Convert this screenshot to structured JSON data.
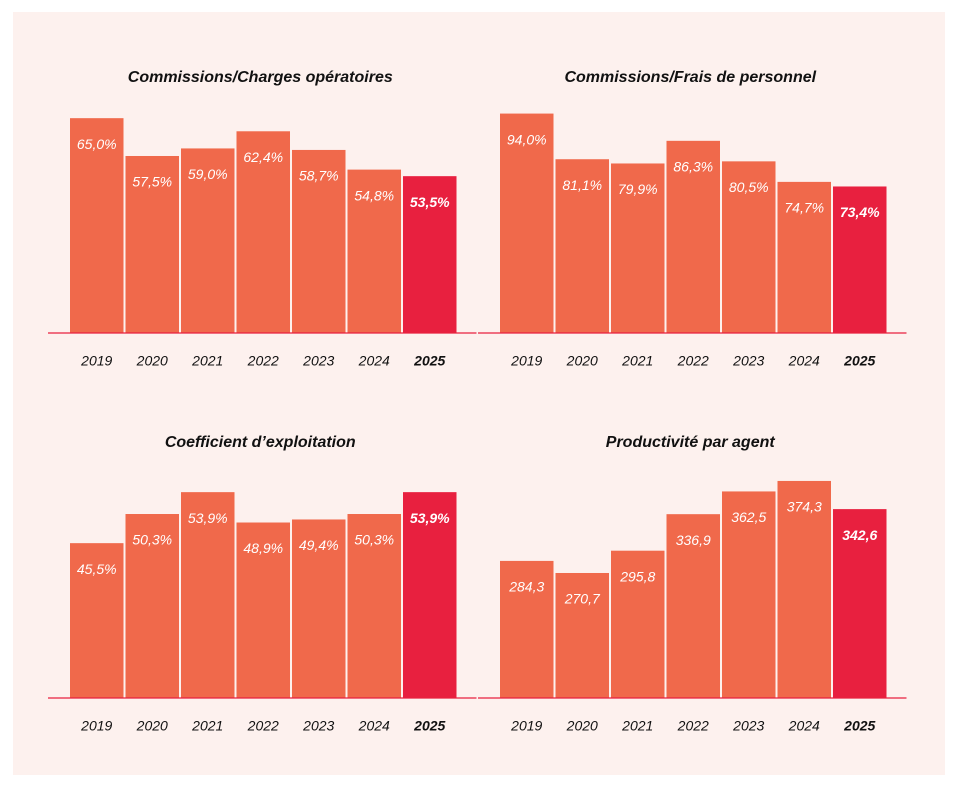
{
  "chart_data": [
    {
      "type": "bar",
      "title": "Commissions/Charges opératoires",
      "categories": [
        "2019",
        "2020",
        "2021",
        "2022",
        "2023",
        "2024",
        "2025"
      ],
      "values": [
        65.0,
        57.5,
        59.0,
        62.4,
        58.7,
        54.8,
        53.5
      ],
      "value_labels": [
        "65,0%",
        "57,5%",
        "59,0%",
        "62,4%",
        "58,7%",
        "54,8%",
        "53,5%"
      ],
      "colors": [
        "#f0694b",
        "#f0694b",
        "#f0694b",
        "#f0694b",
        "#f0694b",
        "#f0694b",
        "#e8203f"
      ],
      "ylim": [
        22.4,
        69
      ]
    },
    {
      "type": "bar",
      "title": "Commissions/Frais de personnel",
      "categories": [
        "2019",
        "2020",
        "2021",
        "2022",
        "2023",
        "2024",
        "2025"
      ],
      "values": [
        94.0,
        81.1,
        79.9,
        86.3,
        80.5,
        74.7,
        73.4
      ],
      "value_labels": [
        "94,0%",
        "81,1%",
        "79,9%",
        "86,3%",
        "80,5%",
        "74,7%",
        "73,4%"
      ],
      "colors": [
        "#f0694b",
        "#f0694b",
        "#f0694b",
        "#f0694b",
        "#f0694b",
        "#f0694b",
        "#e8203f"
      ],
      "ylim": [
        32,
        98.4
      ]
    },
    {
      "type": "bar",
      "title": "Coefficient d’exploitation",
      "categories": [
        "2019",
        "2020",
        "2021",
        "2022",
        "2023",
        "2024",
        "2025"
      ],
      "values": [
        45.5,
        50.3,
        53.9,
        48.9,
        49.4,
        50.3,
        53.9
      ],
      "value_labels": [
        "45,5%",
        "50,3%",
        "53,9%",
        "48,9%",
        "49,4%",
        "50,3%",
        "53,9%"
      ],
      "colors": [
        "#f0694b",
        "#f0694b",
        "#f0694b",
        "#f0694b",
        "#f0694b",
        "#f0694b",
        "#e8203f"
      ],
      "ylim": [
        20,
        58.7
      ]
    },
    {
      "type": "bar",
      "title": "Productivité par agent",
      "categories": [
        "2019",
        "2020",
        "2021",
        "2022",
        "2023",
        "2024",
        "2025"
      ],
      "values": [
        284.3,
        270.7,
        295.8,
        336.9,
        362.5,
        374.3,
        342.6
      ],
      "value_labels": [
        "284,3",
        "270,7",
        "295,8",
        "336,9",
        "362,5",
        "374,3",
        "342,6"
      ],
      "colors": [
        "#f0694b",
        "#f0694b",
        "#f0694b",
        "#f0694b",
        "#f0694b",
        "#f0694b",
        "#e8203f"
      ],
      "ylim": [
        130,
        394.5
      ]
    }
  ]
}
